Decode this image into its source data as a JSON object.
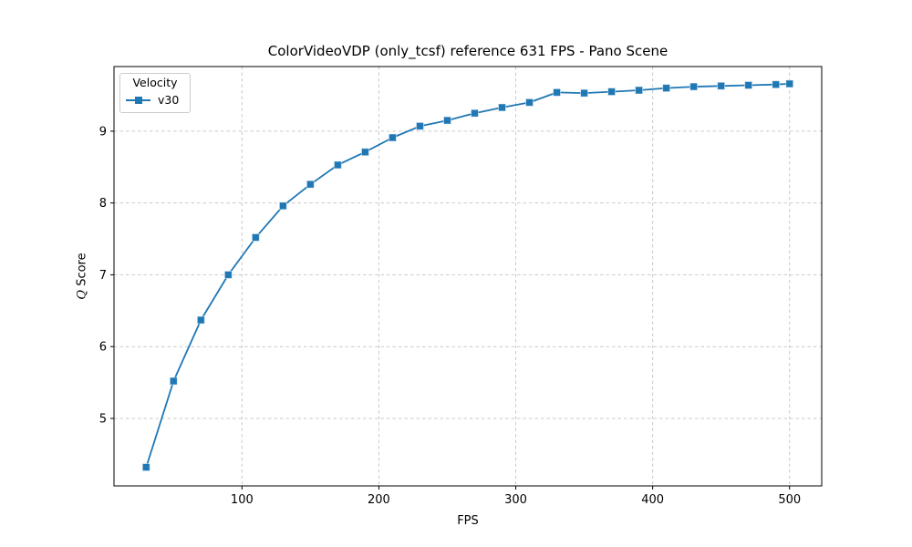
{
  "chart_data": {
    "type": "line",
    "title": "ColorVideoVDP (only_tcsf) reference 631 FPS - Pano Scene",
    "xlabel": "FPS",
    "ylabel": "Q Score",
    "ylabel_parts": {
      "italic": "Q",
      "rest": " Score"
    },
    "xlim": [
      6.5,
      523.5
    ],
    "ylim": [
      4.06,
      9.9
    ],
    "xticks": [
      100,
      200,
      300,
      400,
      500
    ],
    "yticks": [
      5,
      6,
      7,
      8,
      9
    ],
    "grid": true,
    "grid_style": "dashed",
    "legend": {
      "title": "Velocity",
      "position": "upper-left",
      "entries": [
        {
          "label": "v30",
          "color": "#1f77b4",
          "marker": "square"
        }
      ]
    },
    "series": [
      {
        "name": "v30",
        "color": "#1f77b4",
        "marker": "square",
        "line_style": "solid",
        "x": [
          30,
          50,
          70,
          90,
          110,
          130,
          150,
          170,
          190,
          210,
          230,
          250,
          270,
          290,
          310,
          330,
          350,
          370,
          390,
          410,
          430,
          450,
          470,
          490,
          500
        ],
        "y": [
          4.32,
          5.52,
          6.37,
          7.0,
          7.52,
          7.96,
          8.26,
          8.53,
          8.71,
          8.91,
          9.07,
          9.15,
          9.25,
          9.33,
          9.4,
          9.54,
          9.53,
          9.55,
          9.57,
          9.6,
          9.62,
          9.63,
          9.64,
          9.65,
          9.66
        ]
      }
    ],
    "colors": {
      "line": "#1f77b4",
      "grid": "#c9c9c9",
      "spine": "#000000",
      "text": "#000000"
    }
  }
}
